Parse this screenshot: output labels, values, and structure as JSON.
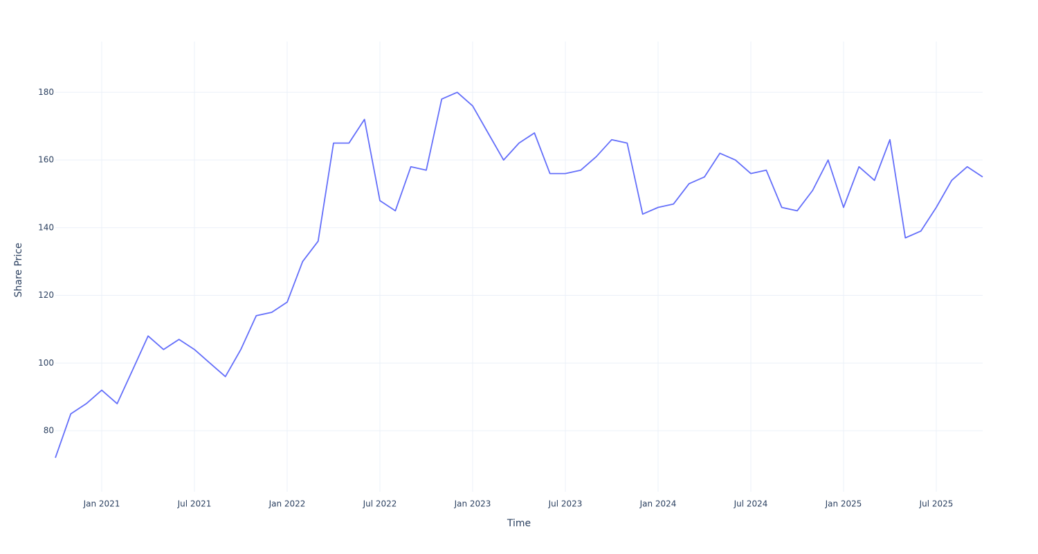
{
  "chart_data": {
    "type": "line",
    "x_label": "Time",
    "y_label": "Share Price",
    "x": [
      "2020-10",
      "2020-11",
      "2020-12",
      "2021-01",
      "2021-02",
      "2021-03",
      "2021-04",
      "2021-05",
      "2021-06",
      "2021-07",
      "2021-08",
      "2021-09",
      "2021-10",
      "2021-11",
      "2021-12",
      "2022-01",
      "2022-02",
      "2022-03",
      "2022-04",
      "2022-05",
      "2022-06",
      "2022-07",
      "2022-08",
      "2022-09",
      "2022-10",
      "2022-11",
      "2022-12",
      "2023-01",
      "2023-02",
      "2023-03",
      "2023-04",
      "2023-05",
      "2023-06",
      "2023-07",
      "2023-08",
      "2023-09",
      "2023-10",
      "2023-11",
      "2023-12",
      "2024-01",
      "2024-02",
      "2024-03",
      "2024-04",
      "2024-05",
      "2024-06",
      "2024-07",
      "2024-08",
      "2024-09",
      "2024-10",
      "2024-11",
      "2024-12",
      "2025-01",
      "2025-02",
      "2025-03",
      "2025-04",
      "2025-05",
      "2025-06",
      "2025-07",
      "2025-08",
      "2025-09",
      "2025-10"
    ],
    "series": [
      {
        "name": "Share Price",
        "color": "#636efa",
        "values": [
          72,
          85,
          88,
          92,
          88,
          98,
          108,
          104,
          107,
          104,
          100,
          96,
          104,
          114,
          115,
          118,
          130,
          136,
          165,
          165,
          172,
          148,
          145,
          158,
          157,
          178,
          180,
          176,
          168,
          160,
          165,
          168,
          156,
          156,
          157,
          161,
          166,
          165,
          144,
          146,
          147,
          153,
          155,
          162,
          160,
          156,
          157,
          146,
          145,
          151,
          160,
          146,
          158,
          154,
          166,
          137,
          139,
          146,
          154,
          158,
          155
        ]
      }
    ],
    "xlim": [
      "2020-10",
      "2025-10"
    ],
    "xticks": [
      {
        "value": "2021-01",
        "label": "Jan 2021"
      },
      {
        "value": "2021-07",
        "label": "Jul 2021"
      },
      {
        "value": "2022-01",
        "label": "Jan 2022"
      },
      {
        "value": "2022-07",
        "label": "Jul 2022"
      },
      {
        "value": "2023-01",
        "label": "Jan 2023"
      },
      {
        "value": "2023-07",
        "label": "Jul 2023"
      },
      {
        "value": "2024-01",
        "label": "Jan 2024"
      },
      {
        "value": "2024-07",
        "label": "Jul 2024"
      },
      {
        "value": "2025-01",
        "label": "Jan 2025"
      },
      {
        "value": "2025-07",
        "label": "Jul 2025"
      }
    ],
    "ylim": [
      62,
      195
    ],
    "yticks": [
      80,
      100,
      120,
      140,
      160,
      180
    ],
    "grid": true
  }
}
